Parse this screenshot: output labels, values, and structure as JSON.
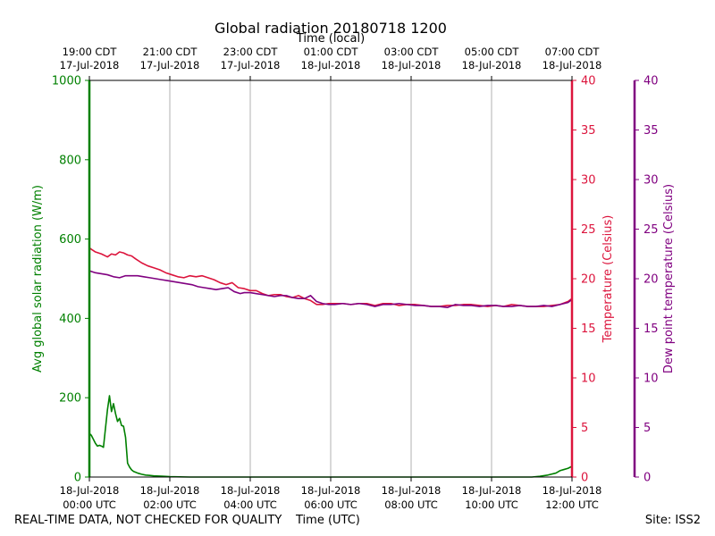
{
  "chart_data": {
    "type": "line",
    "title": "Global radiation 20180718 1200",
    "top_axis_label": "Time (local)",
    "xlabel": "Time (UTC)",
    "ylabel_left": "Avg global solar radiation (W/m)",
    "ylabel_right1": "Temperature (Celsius)",
    "ylabel_right2": "Dew point temperature (Celsius)",
    "grid": "vertical",
    "ylim_radiation": [
      0,
      1000
    ],
    "ylim_temperature": [
      0,
      40
    ],
    "ylim_dewpoint": [
      0,
      40
    ],
    "xlim_hours": [
      0,
      12
    ],
    "bottom_ticks": [
      {
        "hour": 0,
        "line1": "18-Jul-2018",
        "line2": "00:00 UTC"
      },
      {
        "hour": 2,
        "line1": "18-Jul-2018",
        "line2": "02:00 UTC"
      },
      {
        "hour": 4,
        "line1": "18-Jul-2018",
        "line2": "04:00 UTC"
      },
      {
        "hour": 6,
        "line1": "18-Jul-2018",
        "line2": "06:00 UTC"
      },
      {
        "hour": 8,
        "line1": "18-Jul-2018",
        "line2": "08:00 UTC"
      },
      {
        "hour": 10,
        "line1": "18-Jul-2018",
        "line2": "10:00 UTC"
      },
      {
        "hour": 12,
        "line1": "18-Jul-2018",
        "line2": "12:00 UTC"
      }
    ],
    "top_ticks": [
      {
        "hour": 0,
        "line1": "19:00 CDT",
        "line2": "17-Jul-2018"
      },
      {
        "hour": 2,
        "line1": "21:00 CDT",
        "line2": "17-Jul-2018"
      },
      {
        "hour": 4,
        "line1": "23:00 CDT",
        "line2": "17-Jul-2018"
      },
      {
        "hour": 6,
        "line1": "01:00 CDT",
        "line2": "18-Jul-2018"
      },
      {
        "hour": 8,
        "line1": "03:00 CDT",
        "line2": "18-Jul-2018"
      },
      {
        "hour": 10,
        "line1": "05:00 CDT",
        "line2": "18-Jul-2018"
      },
      {
        "hour": 12,
        "line1": "07:00 CDT",
        "line2": "18-Jul-2018"
      }
    ],
    "radiation_ticks": [
      0,
      200,
      400,
      600,
      800,
      1000
    ],
    "temperature_ticks": [
      0,
      5,
      10,
      15,
      20,
      25,
      30,
      35,
      40
    ],
    "dewpoint_ticks": [
      0,
      5,
      10,
      15,
      20,
      25,
      30,
      35,
      40
    ],
    "colors": {
      "radiation": "#008000",
      "temperature": "#dc143c",
      "dewpoint": "#800080",
      "grid": "#b0b0b0"
    },
    "series": [
      {
        "name": "radiation",
        "axis": "radiation",
        "x": [
          0,
          0.05,
          0.15,
          0.2,
          0.25,
          0.3,
          0.35,
          0.45,
          0.5,
          0.55,
          0.6,
          0.65,
          0.7,
          0.75,
          0.8,
          0.85,
          0.9,
          0.95,
          1.0,
          1.05,
          1.1,
          1.15,
          1.2,
          1.3,
          1.4,
          1.5,
          1.6,
          1.8,
          2.0,
          2.5,
          3,
          4,
          5,
          6,
          7,
          8,
          9,
          10,
          11,
          11.2,
          11.4,
          11.6,
          11.7,
          11.8,
          11.9,
          12.0
        ],
        "y": [
          110,
          105,
          85,
          78,
          80,
          78,
          75,
          170,
          205,
          165,
          185,
          160,
          140,
          148,
          130,
          128,
          100,
          35,
          25,
          18,
          14,
          12,
          10,
          7,
          5,
          4,
          3,
          2,
          1,
          0,
          0,
          0,
          0,
          0,
          0,
          0,
          0,
          0,
          0,
          2,
          5,
          10,
          16,
          19,
          22,
          27
        ]
      },
      {
        "name": "temperature",
        "axis": "temperature",
        "x": [
          0,
          0.15,
          0.3,
          0.45,
          0.55,
          0.65,
          0.75,
          0.85,
          0.95,
          1.05,
          1.15,
          1.3,
          1.45,
          1.6,
          1.75,
          1.9,
          2.05,
          2.2,
          2.35,
          2.5,
          2.65,
          2.8,
          2.95,
          3.1,
          3.25,
          3.4,
          3.55,
          3.7,
          3.85,
          4.0,
          4.15,
          4.3,
          4.45,
          4.6,
          4.75,
          4.9,
          5.05,
          5.2,
          5.35,
          5.5,
          5.65,
          5.8,
          5.95,
          6.1,
          6.3,
          6.5,
          6.7,
          6.9,
          7.1,
          7.3,
          7.5,
          7.7,
          7.9,
          8.1,
          8.3,
          8.5,
          8.7,
          8.9,
          9.1,
          9.3,
          9.5,
          9.7,
          9.9,
          10.1,
          10.3,
          10.5,
          10.7,
          10.9,
          11.1,
          11.3,
          11.5,
          11.7,
          11.9,
          12.0
        ],
        "y": [
          23.1,
          22.7,
          22.5,
          22.2,
          22.5,
          22.4,
          22.7,
          22.6,
          22.4,
          22.3,
          22.0,
          21.6,
          21.3,
          21.1,
          20.9,
          20.6,
          20.4,
          20.2,
          20.1,
          20.3,
          20.2,
          20.3,
          20.1,
          19.9,
          19.6,
          19.4,
          19.6,
          19.1,
          19.0,
          18.8,
          18.8,
          18.5,
          18.3,
          18.4,
          18.4,
          18.2,
          18.1,
          18.3,
          18.0,
          17.8,
          17.4,
          17.4,
          17.5,
          17.5,
          17.5,
          17.4,
          17.5,
          17.5,
          17.3,
          17.5,
          17.5,
          17.3,
          17.4,
          17.4,
          17.3,
          17.2,
          17.2,
          17.3,
          17.3,
          17.4,
          17.4,
          17.3,
          17.2,
          17.3,
          17.2,
          17.4,
          17.3,
          17.2,
          17.2,
          17.2,
          17.3,
          17.4,
          17.7,
          18.0
        ]
      },
      {
        "name": "dewpoint",
        "axis": "dewpoint",
        "x": [
          0,
          0.15,
          0.3,
          0.45,
          0.6,
          0.75,
          0.9,
          1.05,
          1.2,
          1.35,
          1.5,
          1.65,
          1.8,
          1.95,
          2.1,
          2.25,
          2.4,
          2.55,
          2.7,
          2.85,
          3.0,
          3.15,
          3.3,
          3.45,
          3.6,
          3.75,
          3.85,
          4.0,
          4.15,
          4.3,
          4.45,
          4.6,
          4.75,
          4.9,
          5.05,
          5.2,
          5.35,
          5.5,
          5.65,
          5.8,
          5.95,
          6.1,
          6.3,
          6.5,
          6.7,
          6.9,
          7.1,
          7.3,
          7.5,
          7.7,
          7.9,
          8.1,
          8.3,
          8.5,
          8.7,
          8.9,
          9.1,
          9.3,
          9.5,
          9.7,
          9.9,
          10.1,
          10.3,
          10.5,
          10.7,
          10.9,
          11.1,
          11.3,
          11.5,
          11.7,
          11.9,
          12.0
        ],
        "y": [
          20.8,
          20.6,
          20.5,
          20.4,
          20.2,
          20.1,
          20.3,
          20.3,
          20.3,
          20.2,
          20.1,
          20.0,
          19.9,
          19.8,
          19.7,
          19.6,
          19.5,
          19.4,
          19.2,
          19.1,
          19.0,
          18.9,
          19.0,
          19.1,
          18.7,
          18.5,
          18.6,
          18.6,
          18.5,
          18.4,
          18.3,
          18.2,
          18.3,
          18.3,
          18.1,
          18.0,
          18.0,
          18.3,
          17.7,
          17.5,
          17.4,
          17.4,
          17.5,
          17.4,
          17.5,
          17.4,
          17.2,
          17.4,
          17.4,
          17.5,
          17.4,
          17.3,
          17.3,
          17.2,
          17.2,
          17.1,
          17.4,
          17.3,
          17.3,
          17.2,
          17.3,
          17.3,
          17.2,
          17.2,
          17.3,
          17.2,
          17.2,
          17.3,
          17.2,
          17.4,
          17.6,
          17.9
        ]
      }
    ]
  },
  "footer": {
    "left": "REAL-TIME DATA, NOT CHECKED FOR QUALITY",
    "center": "Time (UTC)",
    "right": "Site: ISS2"
  }
}
